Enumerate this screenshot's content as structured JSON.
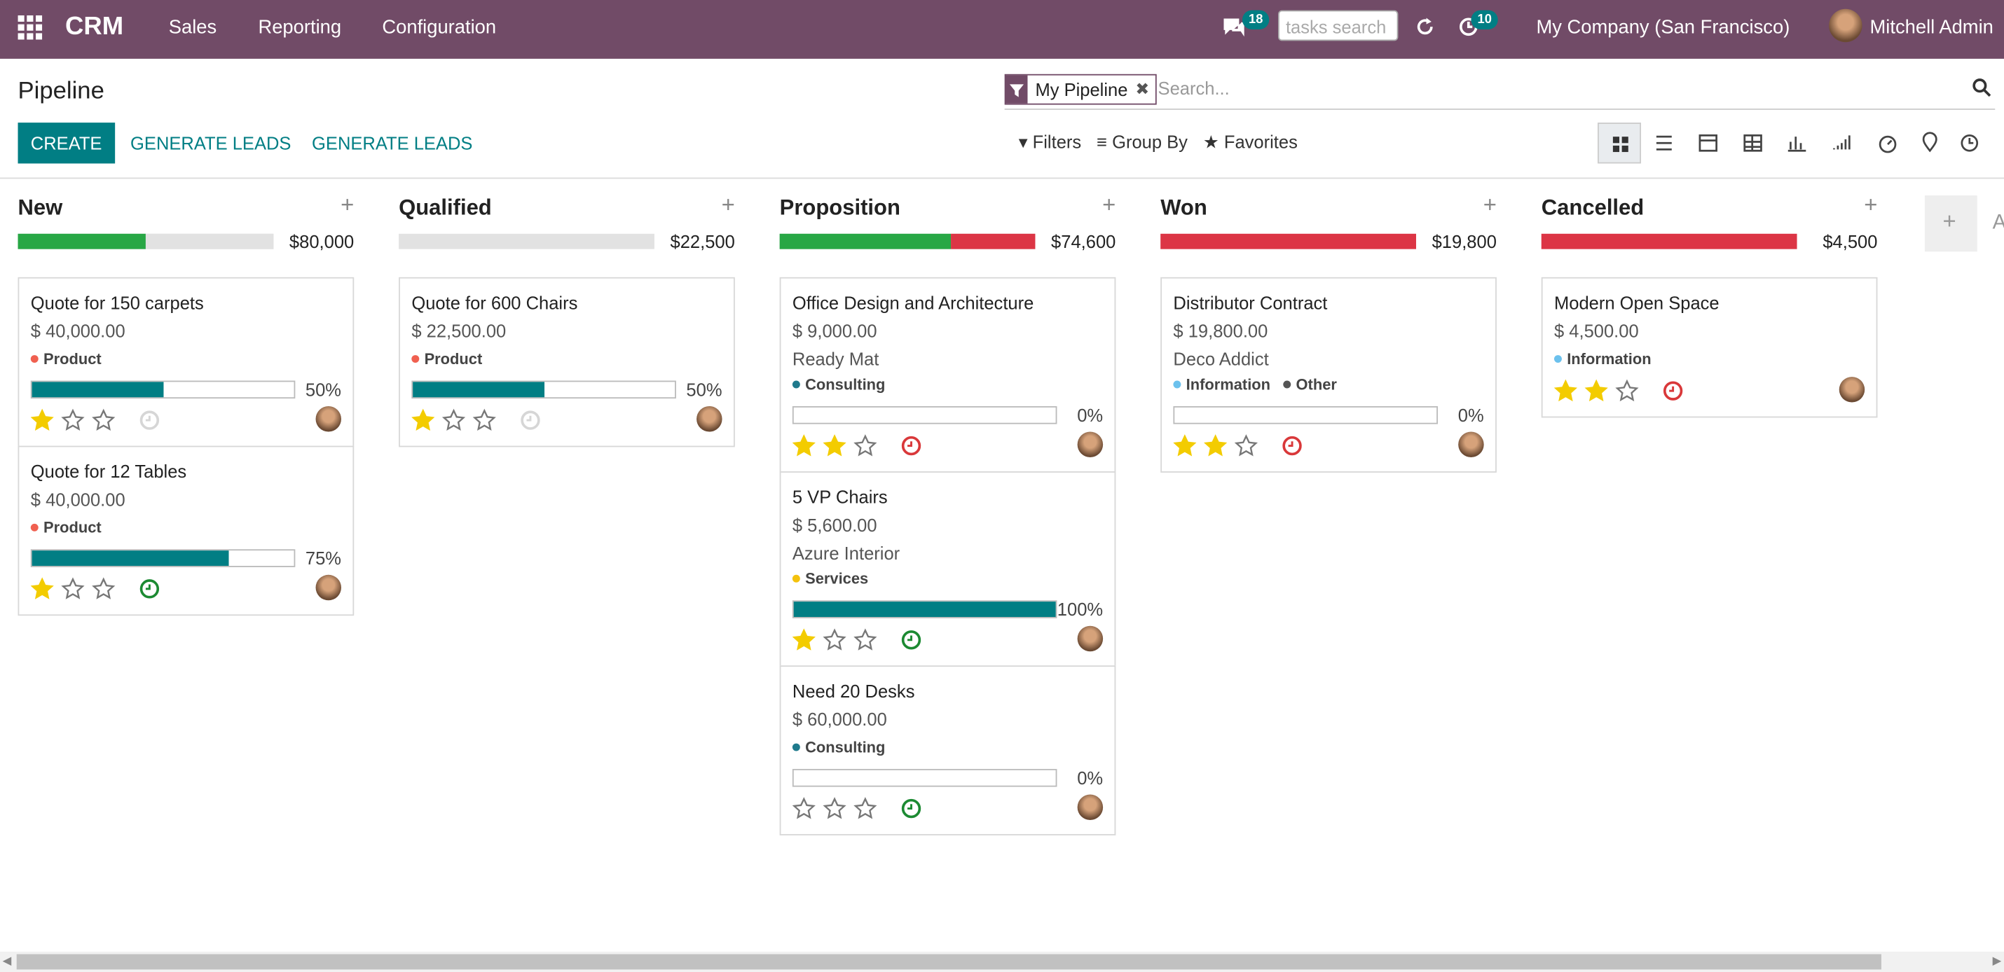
{
  "navbar": {
    "app": "CRM",
    "menus": [
      "Sales",
      "Reporting",
      "Configuration"
    ],
    "messages_badge": 18,
    "search_placeholder": "tasks search",
    "activities_badge": 10,
    "company": "My Company (San Francisco)",
    "user": "Mitchell Admin"
  },
  "control_panel": {
    "title": "Pipeline",
    "buttons": [
      "CREATE",
      "GENERATE LEADS",
      "GENERATE LEADS"
    ],
    "facet": "My Pipeline",
    "search_placeholder": "Search...",
    "filters": "Filters",
    "group_by": "Group By",
    "favorites": "Favorites"
  },
  "columns": [
    {
      "name": "New",
      "total": "$80,000",
      "progress": [
        {
          "color": "#28a745",
          "share": 50
        },
        {
          "color": "#e2e2e2",
          "share": 50
        }
      ],
      "cards": [
        {
          "title": "Quote for 150 carpets",
          "revenue": "$ 40,000.00",
          "tags": [
            {
              "label": "Product",
              "color": "#f06050"
            }
          ],
          "probability": {
            "value": 50,
            "label": "50%"
          },
          "stars": 1,
          "activity_color": "#d6d6d6"
        },
        {
          "title": "Quote for 12 Tables",
          "revenue": "$ 40,000.00",
          "tags": [
            {
              "label": "Product",
              "color": "#f06050"
            }
          ],
          "probability": {
            "value": 75,
            "label": "75%"
          },
          "stars": 1,
          "activity_color": "#1c8a32"
        }
      ]
    },
    {
      "name": "Qualified",
      "total": "$22,500",
      "progress": [
        {
          "color": "#e2e2e2",
          "share": 100
        }
      ],
      "cards": [
        {
          "title": "Quote for 600 Chairs",
          "revenue": "$ 22,500.00",
          "tags": [
            {
              "label": "Product",
              "color": "#f06050"
            }
          ],
          "probability": {
            "value": 50,
            "label": "50%"
          },
          "stars": 1,
          "activity_color": "#d6d6d6"
        }
      ]
    },
    {
      "name": "Proposition",
      "total": "$74,600",
      "progress": [
        {
          "color": "#28a745",
          "share": 67
        },
        {
          "color": "#dc3545",
          "share": 33
        }
      ],
      "cards": [
        {
          "title": "Office Design and Architecture",
          "revenue": "$ 9,000.00",
          "customer": "Ready Mat",
          "tags": [
            {
              "label": "Consulting",
              "color": "#1f7a8c"
            }
          ],
          "probability": {
            "value": 0,
            "label": "0%"
          },
          "stars": 2,
          "activity_color": "#d9383a"
        },
        {
          "title": "5 VP Chairs",
          "revenue": "$ 5,600.00",
          "customer": "Azure Interior",
          "tags": [
            {
              "label": "Services",
              "color": "#f4c20d"
            }
          ],
          "probability": {
            "value": 100,
            "label": "100%"
          },
          "stars": 1,
          "activity_color": "#1c8a32"
        },
        {
          "title": "Need 20 Desks",
          "revenue": "$ 60,000.00",
          "tags": [
            {
              "label": "Consulting",
              "color": "#1f7a8c"
            }
          ],
          "probability": {
            "value": 0,
            "label": "0%"
          },
          "stars": 0,
          "activity_color": "#1c8a32"
        }
      ]
    },
    {
      "name": "Won",
      "total": "$19,800",
      "progress": [
        {
          "color": "#dc3545",
          "share": 100
        }
      ],
      "cards": [
        {
          "title": "Distributor Contract",
          "revenue": "$ 19,800.00",
          "customer": "Deco Addict",
          "tags": [
            {
              "label": "Information",
              "color": "#6cc1ed"
            },
            {
              "label": "Other",
              "color": "#555555"
            }
          ],
          "probability": {
            "value": 0,
            "label": "0%"
          },
          "stars": 2,
          "activity_color": "#d9383a"
        }
      ]
    },
    {
      "name": "Cancelled",
      "total": "$4,500",
      "progress": [
        {
          "color": "#dc3545",
          "share": 100
        }
      ],
      "cards": [
        {
          "title": "Modern Open Space",
          "revenue": "$ 4,500.00",
          "tags": [
            {
              "label": "Information",
              "color": "#6cc1ed"
            }
          ],
          "stars": 2,
          "activity_color": "#d9383a"
        }
      ]
    }
  ],
  "add_column": "A"
}
